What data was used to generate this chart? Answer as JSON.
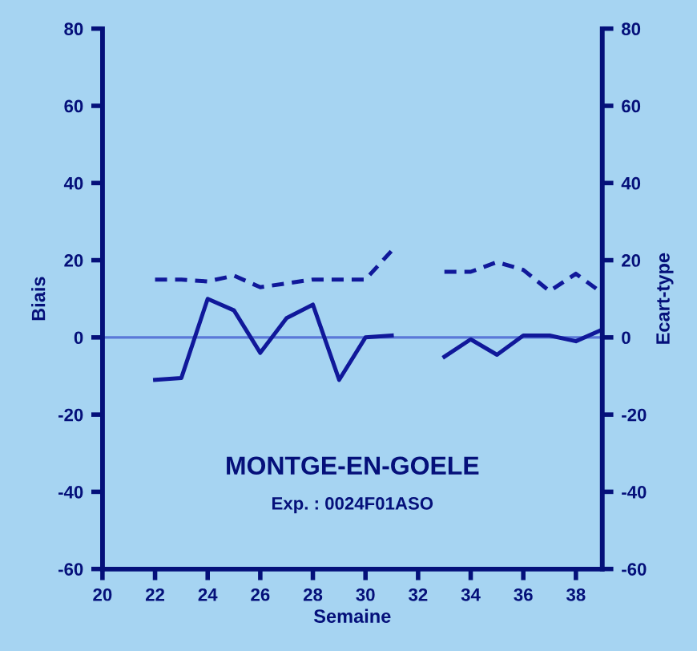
{
  "chart_data": {
    "type": "line",
    "title": "MONTGE-EN-GOELE",
    "subtitle": "Exp. : 0024F01ASO",
    "xlabel": "Semaine",
    "ylabel": "Biais",
    "y2label": "Ecart-type",
    "x": [
      22,
      23,
      24,
      25,
      26,
      27,
      28,
      29,
      30,
      31,
      32,
      33,
      34,
      35,
      36,
      37,
      38,
      39
    ],
    "series": [
      {
        "color": "#10189a",
        "line_style": "solid",
        "values": [
          -11,
          -10.5,
          10,
          7,
          -4,
          5,
          8.5,
          -11,
          0,
          0.5,
          null,
          -5,
          -0.5,
          -4.5,
          0.5,
          0.5,
          -1,
          2
        ]
      },
      {
        "color": "#10189a",
        "line_style": "dashed",
        "values": [
          15,
          15,
          14.5,
          16,
          13,
          14,
          15,
          15,
          15,
          22.5,
          null,
          17,
          17,
          19.5,
          17.5,
          12,
          16.5,
          11.5
        ]
      }
    ],
    "xlim": [
      20,
      39
    ],
    "xticks": [
      20,
      22,
      24,
      26,
      28,
      30,
      32,
      34,
      36,
      38
    ],
    "ylim": [
      -60,
      80
    ],
    "yticks": [
      -60,
      -40,
      -20,
      0,
      20,
      40,
      60,
      80
    ],
    "y2lim": [
      -60,
      80
    ],
    "y2ticks": [
      -60,
      -40,
      -20,
      0,
      20,
      40,
      60,
      80
    ],
    "ref_lines": [
      {
        "axis": "y",
        "value": 0,
        "color": "#5a78d8"
      }
    ],
    "grid": false,
    "marker": "none"
  }
}
